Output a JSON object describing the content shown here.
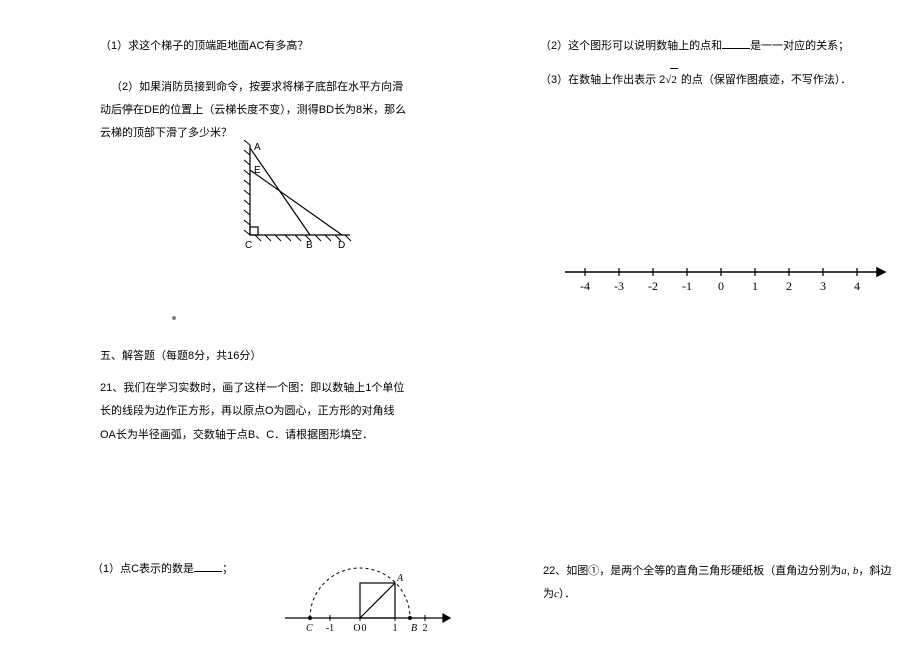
{
  "left": {
    "q1": "（1）求这个梯子的顶端距地面AC有多高？",
    "q2": "（2）如果消防员接到命令，按要求将梯子底部在水平方向滑动后停在DE的位置上（云梯长度不变），测得BD长为8米，那么云梯的顶部下滑了多少米？",
    "section5": "五、解答题（每题8分，共16分）",
    "q21": "21、我们在学习实数时，画了这样一个图：即以数轴上1个单位长的线段为边作正方形，再以原点O为圆心，正方形的对角线OA长为半径画弧，交数轴于点B、C．请根据图形填空．",
    "q1c_prefix": "（1）点C表示的数是",
    "q1c_suffix": "；"
  },
  "right": {
    "q2_prefix": "（2）这个图形可以说明数轴上的点和",
    "q2_suffix": "是一一对应的关系；",
    "q3_prefix": "（3）在数轴上作出表示 2",
    "q3_sqrt": "2",
    "q3_suffix": " 的点（保留作图痕迹，不写作法）．",
    "q22_prefix": "22、如图①，是两个全等的直角三角形硬纸板（直角边分别为",
    "a": "a",
    "b": "b",
    "c": "c",
    "q22_mid1": ", ",
    "q22_mid2": "，斜边为",
    "q22_suffix": "）．"
  },
  "triangle": {
    "labels": {
      "A": "A",
      "E": "E",
      "C": "C",
      "B": "B",
      "D": "D"
    },
    "stroke": "#000000",
    "hatch_stroke": "#000000"
  },
  "numberline": {
    "ticks": [
      "-4",
      "-3",
      "-2",
      "-1",
      "0",
      "1",
      "2",
      "3",
      "4"
    ],
    "stroke": "#000000"
  },
  "arc": {
    "labels": {
      "C": "C",
      "O": "O",
      "A": "A",
      "B": "B",
      "neg1": "-1",
      "zero": "0",
      "one": "1",
      "two": "2"
    },
    "stroke": "#000000",
    "dash": "3,3"
  }
}
